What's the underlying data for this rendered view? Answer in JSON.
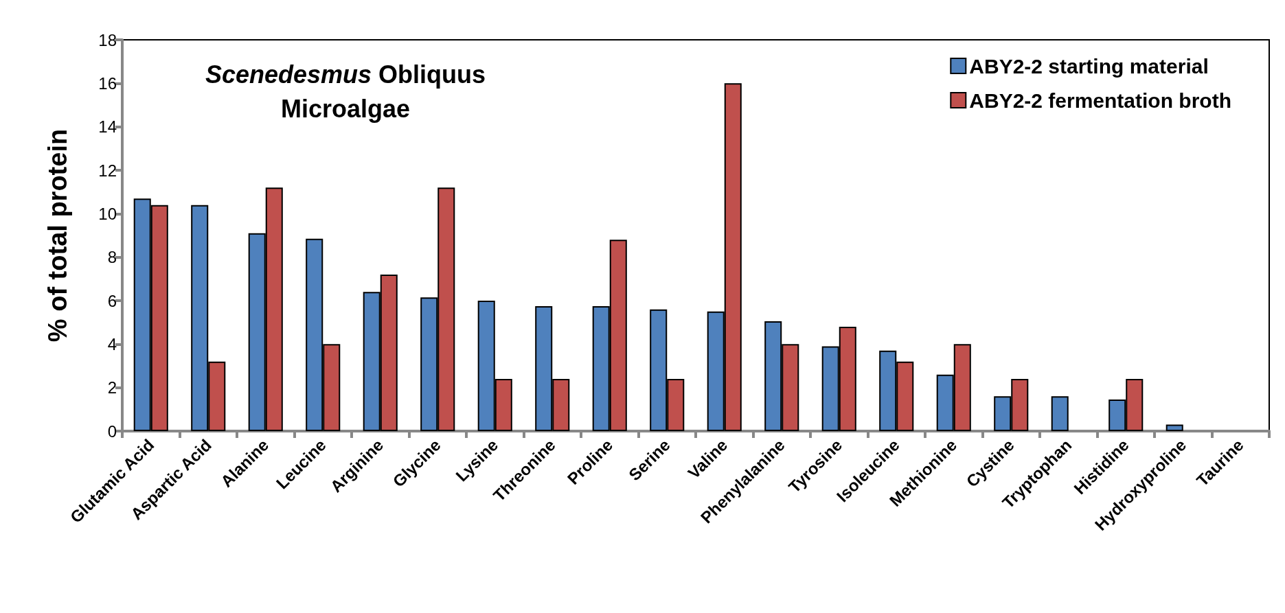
{
  "chart_data": {
    "type": "bar",
    "title": "Scenedesmus Obliquus Microalgae",
    "ylabel": "% of total protein",
    "categories": [
      "Glutamic Acid",
      "Aspartic Acid",
      "Alanine",
      "Leucine",
      "Arginine",
      "Glycine",
      "Lysine",
      "Threonine",
      "Proline",
      "Serine",
      "Valine",
      "Phenylalanine",
      "Tyrosine",
      "Isoleucine",
      "Methionine",
      "Cystine",
      "Tryptophan",
      "Histidine",
      "Hydroxyproline",
      "Taurine"
    ],
    "series": [
      {
        "name": "ABY2-2 starting material",
        "color": "#4f81bd",
        "values": [
          10.7,
          10.4,
          9.1,
          8.85,
          6.4,
          6.15,
          6.0,
          5.75,
          5.75,
          5.6,
          5.5,
          5.05,
          3.9,
          3.7,
          2.6,
          1.6,
          1.6,
          1.45,
          0.3,
          null
        ]
      },
      {
        "name": "ABY2-2 fermentation broth",
        "color": "#c0504d",
        "values": [
          10.4,
          3.2,
          11.2,
          4.0,
          7.2,
          11.2,
          2.4,
          2.4,
          8.8,
          2.4,
          16.0,
          4.0,
          4.8,
          3.2,
          4.0,
          2.4,
          null,
          2.4,
          null,
          null
        ]
      }
    ],
    "ylim": [
      0,
      18
    ],
    "yticks": [
      0,
      2,
      4,
      6,
      8,
      10,
      12,
      14,
      16,
      18
    ],
    "grid": false,
    "legend": "top right"
  }
}
